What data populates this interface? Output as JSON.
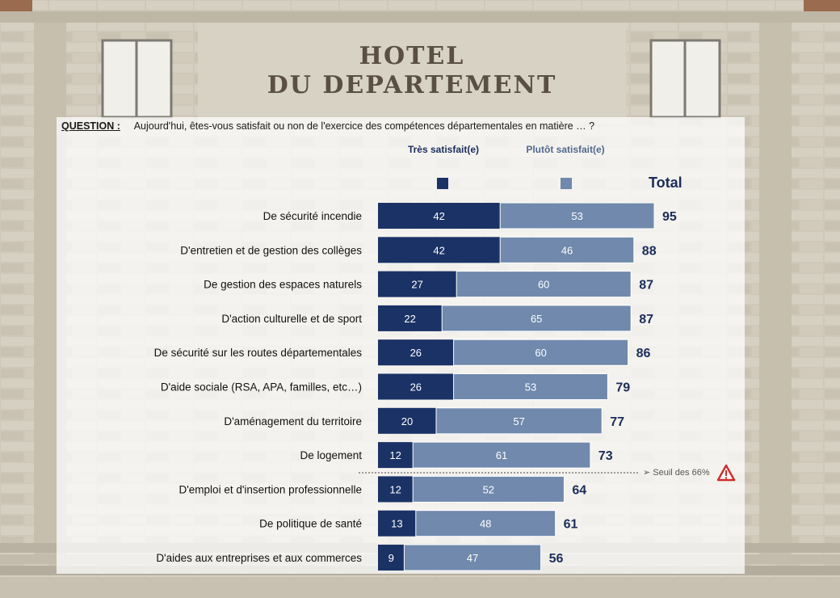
{
  "background": {
    "sign_line1": "HOTEL",
    "sign_line2": "DU DEPARTEMENT"
  },
  "question": {
    "label": "QUESTION :",
    "text": "Aujourd'hui, êtes-vous satisfait ou non de l'exercice des compétences départementales en matière … ?"
  },
  "legend": {
    "tres": "Très satisfait(e)",
    "plutot": "Plutôt satisfait(e)",
    "total": "Total"
  },
  "threshold": {
    "label": "➢ Seuil des 66%",
    "value": 66,
    "icon": "warning-icon"
  },
  "colors": {
    "tres": "#1b3266",
    "plutot": "#7089ad",
    "total_text": "#1b2c5c"
  },
  "chart_data": {
    "type": "bar",
    "orientation": "horizontal",
    "stacked": true,
    "categories": [
      "De sécurité incendie",
      "D'entretien et de gestion des collèges",
      "De gestion des espaces naturels",
      "D'action culturelle et de sport",
      "De sécurité sur les routes départementales",
      "D'aide sociale (RSA, APA, familles, etc…)",
      "D'aménagement du territoire",
      "De logement",
      "D'emploi et d'insertion professionnelle",
      "De politique de santé",
      "D'aides aux entreprises et aux commerces"
    ],
    "series": [
      {
        "name": "Très satisfait(e)",
        "values": [
          42,
          42,
          27,
          22,
          26,
          26,
          20,
          12,
          12,
          13,
          9
        ]
      },
      {
        "name": "Plutôt satisfait(e)",
        "values": [
          53,
          46,
          60,
          65,
          60,
          53,
          57,
          61,
          52,
          48,
          47
        ]
      }
    ],
    "totals": [
      95,
      88,
      87,
      87,
      86,
      79,
      77,
      73,
      64,
      61,
      56
    ],
    "xlim": [
      0,
      95
    ]
  }
}
